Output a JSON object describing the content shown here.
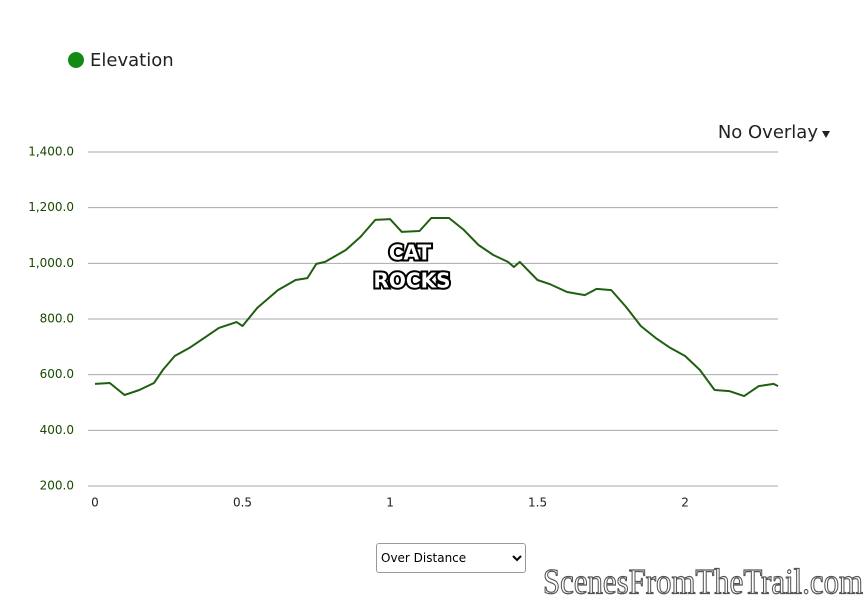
{
  "chart_data": {
    "type": "line",
    "x": [
      0,
      0.05,
      0.1,
      0.15,
      0.2,
      0.23,
      0.27,
      0.32,
      0.37,
      0.42,
      0.48,
      0.5,
      0.55,
      0.62,
      0.68,
      0.72,
      0.75,
      0.78,
      0.85,
      0.9,
      0.95,
      1.0,
      1.04,
      1.1,
      1.14,
      1.2,
      1.25,
      1.3,
      1.35,
      1.4,
      1.42,
      1.44,
      1.5,
      1.54,
      1.6,
      1.66,
      1.7,
      1.75,
      1.8,
      1.85,
      1.9,
      1.95,
      2.0,
      2.05,
      2.1,
      2.15,
      2.2,
      2.25,
      2.3,
      2.315
    ],
    "series": [
      {
        "name": "Elevation",
        "color": "#1f5f0f",
        "values": [
          567,
          570,
          527,
          545,
          570,
          617,
          667,
          696,
          732,
          768,
          789,
          775,
          840,
          904,
          940,
          947,
          998,
          1005,
          1048,
          1095,
          1156,
          1159,
          1113,
          1116,
          1163,
          1163,
          1120,
          1066,
          1030,
          1005,
          987,
          1005,
          940,
          926,
          897,
          886,
          908,
          904,
          843,
          775,
          732,
          696,
          667,
          617,
          545,
          541,
          523,
          559,
          567,
          559
        ]
      }
    ],
    "legend_color": "#138a13",
    "xlim": [
      0,
      2.315
    ],
    "xticks": [
      0,
      0.5,
      1,
      1.5,
      2
    ],
    "ylim": [
      200,
      1400
    ],
    "yticks": [
      {
        "value": 200,
        "label": "200.0"
      },
      {
        "value": 400,
        "label": "400.0"
      },
      {
        "value": 600,
        "label": "600.0"
      },
      {
        "value": 800,
        "label": "800.0"
      },
      {
        "value": 1000,
        "label": "1,000.0"
      },
      {
        "value": 1200,
        "label": "1,200.0"
      },
      {
        "value": 1400,
        "label": "1,400.0"
      }
    ],
    "grid": true,
    "annotation": [
      "CAT",
      "ROCKS"
    ]
  },
  "overlay_menu": "No Overlay",
  "distance_select": "Over Distance",
  "watermark": "ScenesFromTheTrail.com"
}
